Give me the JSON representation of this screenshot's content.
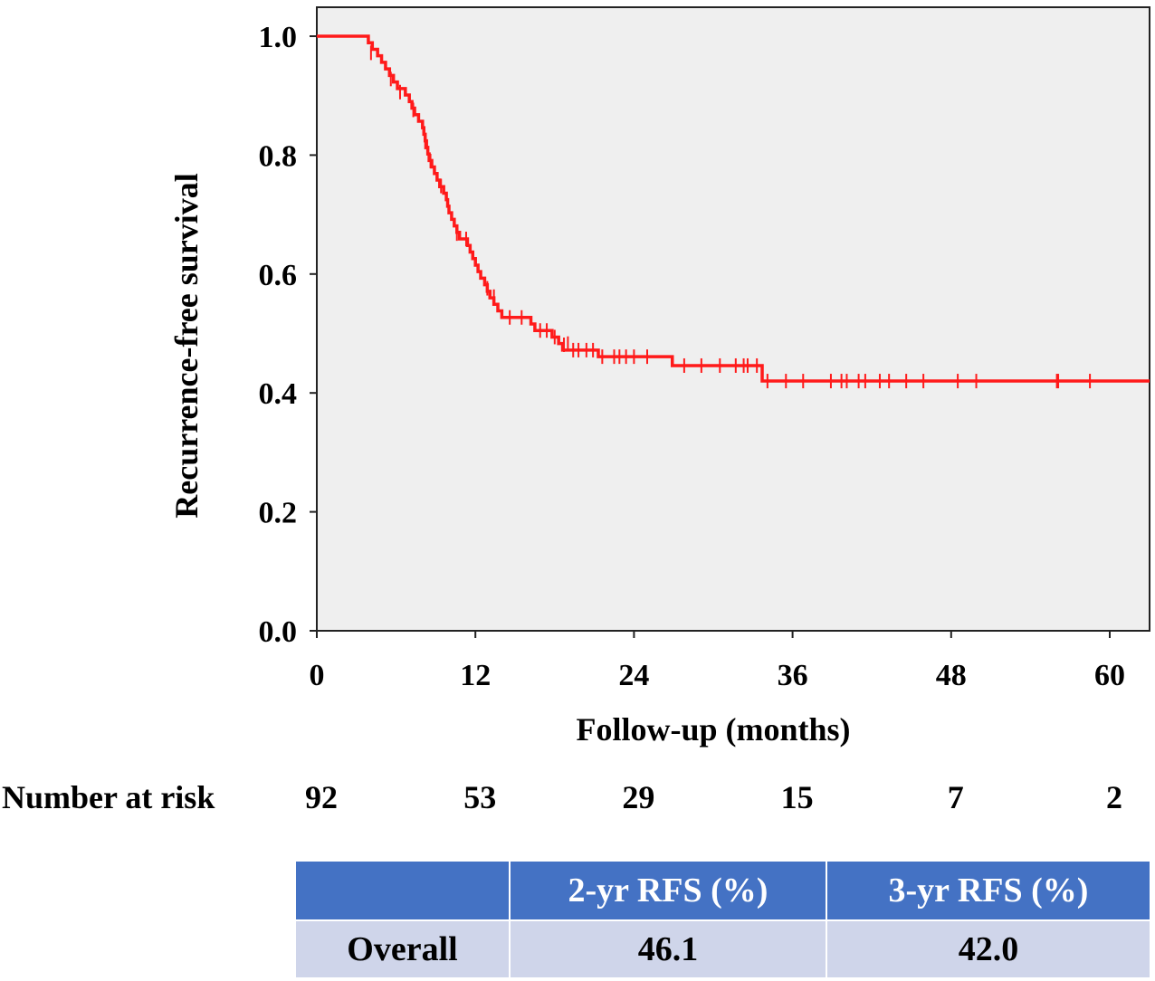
{
  "chart_data": {
    "type": "line",
    "subtype": "kaplan-meier",
    "xlabel": "Follow-up (months)",
    "ylabel": "Recurrence-free survival",
    "xlim": [
      0,
      63
    ],
    "ylim": [
      0,
      1.0
    ],
    "xticks": [
      0,
      12,
      24,
      36,
      48,
      60
    ],
    "yticks": [
      0.0,
      0.2,
      0.4,
      0.6,
      0.8,
      1.0
    ],
    "ytick_labels": [
      "0.0",
      "0.2",
      "0.4",
      "0.6",
      "0.8",
      "1.0"
    ],
    "series": [
      {
        "name": "Overall",
        "color": "#ff1a1a",
        "steps": [
          [
            0,
            1.0
          ],
          [
            3.9,
            0.989
          ],
          [
            4.2,
            0.978
          ],
          [
            4.6,
            0.967
          ],
          [
            4.9,
            0.956
          ],
          [
            5.2,
            0.945
          ],
          [
            5.5,
            0.934
          ],
          [
            5.8,
            0.923
          ],
          [
            6.1,
            0.912
          ],
          [
            6.7,
            0.901
          ],
          [
            7.0,
            0.89
          ],
          [
            7.2,
            0.879
          ],
          [
            7.4,
            0.868
          ],
          [
            7.7,
            0.857
          ],
          [
            8.0,
            0.846
          ],
          [
            8.1,
            0.835
          ],
          [
            8.2,
            0.824
          ],
          [
            8.3,
            0.813
          ],
          [
            8.4,
            0.802
          ],
          [
            8.5,
            0.791
          ],
          [
            8.7,
            0.78
          ],
          [
            8.9,
            0.769
          ],
          [
            9.1,
            0.758
          ],
          [
            9.3,
            0.747
          ],
          [
            9.6,
            0.736
          ],
          [
            9.8,
            0.725
          ],
          [
            9.9,
            0.714
          ],
          [
            10.0,
            0.703
          ],
          [
            10.2,
            0.692
          ],
          [
            10.4,
            0.681
          ],
          [
            10.6,
            0.67
          ],
          [
            10.8,
            0.659
          ],
          [
            11.4,
            0.648
          ],
          [
            11.6,
            0.637
          ],
          [
            11.8,
            0.626
          ],
          [
            12.0,
            0.615
          ],
          [
            12.2,
            0.604
          ],
          [
            12.4,
            0.593
          ],
          [
            12.7,
            0.582
          ],
          [
            12.9,
            0.571
          ],
          [
            13.1,
            0.56
          ],
          [
            13.4,
            0.549
          ],
          [
            13.7,
            0.538
          ],
          [
            14.0,
            0.527
          ],
          [
            16.2,
            0.516
          ],
          [
            16.5,
            0.505
          ],
          [
            17.8,
            0.494
          ],
          [
            18.3,
            0.483
          ],
          [
            18.6,
            0.472
          ],
          [
            21.3,
            0.461
          ],
          [
            26.9,
            0.446
          ],
          [
            33.7,
            0.42
          ],
          [
            63,
            0.42
          ]
        ],
        "censored": [
          [
            4.1,
            0.972
          ],
          [
            5.6,
            0.928
          ],
          [
            6.3,
            0.906
          ],
          [
            7.3,
            0.876
          ],
          [
            8.2,
            0.822
          ],
          [
            8.6,
            0.79
          ],
          [
            9.4,
            0.748
          ],
          [
            10.6,
            0.668
          ],
          [
            11.3,
            0.659
          ],
          [
            12.9,
            0.576
          ],
          [
            13.4,
            0.562
          ],
          [
            14.6,
            0.527
          ],
          [
            15.5,
            0.527
          ],
          [
            16.9,
            0.505
          ],
          [
            17.4,
            0.505
          ],
          [
            18.0,
            0.494
          ],
          [
            18.7,
            0.481
          ],
          [
            19.0,
            0.483
          ],
          [
            19.4,
            0.472
          ],
          [
            19.8,
            0.472
          ],
          [
            20.4,
            0.472
          ],
          [
            20.9,
            0.472
          ],
          [
            21.6,
            0.461
          ],
          [
            22.5,
            0.461
          ],
          [
            22.9,
            0.461
          ],
          [
            23.4,
            0.461
          ],
          [
            24.0,
            0.461
          ],
          [
            25.0,
            0.461
          ],
          [
            27.8,
            0.446
          ],
          [
            29.1,
            0.446
          ],
          [
            30.5,
            0.446
          ],
          [
            31.7,
            0.446
          ],
          [
            32.3,
            0.446
          ],
          [
            32.6,
            0.446
          ],
          [
            33.3,
            0.446
          ],
          [
            34.1,
            0.42
          ],
          [
            35.5,
            0.42
          ],
          [
            36.8,
            0.42
          ],
          [
            38.9,
            0.42
          ],
          [
            39.7,
            0.42
          ],
          [
            40.1,
            0.42
          ],
          [
            41.0,
            0.42
          ],
          [
            41.5,
            0.42
          ],
          [
            42.6,
            0.42
          ],
          [
            43.3,
            0.42
          ],
          [
            44.6,
            0.42
          ],
          [
            45.9,
            0.42
          ],
          [
            48.5,
            0.42
          ],
          [
            49.9,
            0.42
          ],
          [
            56.0,
            0.42
          ],
          [
            56.1,
            0.42
          ],
          [
            58.5,
            0.42
          ]
        ]
      }
    ],
    "risk_table": {
      "label": "Number at risk",
      "times": [
        0,
        12,
        24,
        36,
        48,
        60
      ],
      "counts": [
        "92",
        "53",
        "29",
        "15",
        "7",
        "2"
      ]
    }
  },
  "summary_table": {
    "headers": [
      "",
      "2-yr RFS (%)",
      "3-yr RFS (%)"
    ],
    "rows": [
      {
        "label": "Overall",
        "rfs_2yr": "46.1",
        "rfs_3yr": "42.0"
      }
    ]
  },
  "colors": {
    "plot_background": "#efefef",
    "curve": "#ff1a1a",
    "header_fill": "#4472c4",
    "row_fill": "#cfd5ea"
  }
}
